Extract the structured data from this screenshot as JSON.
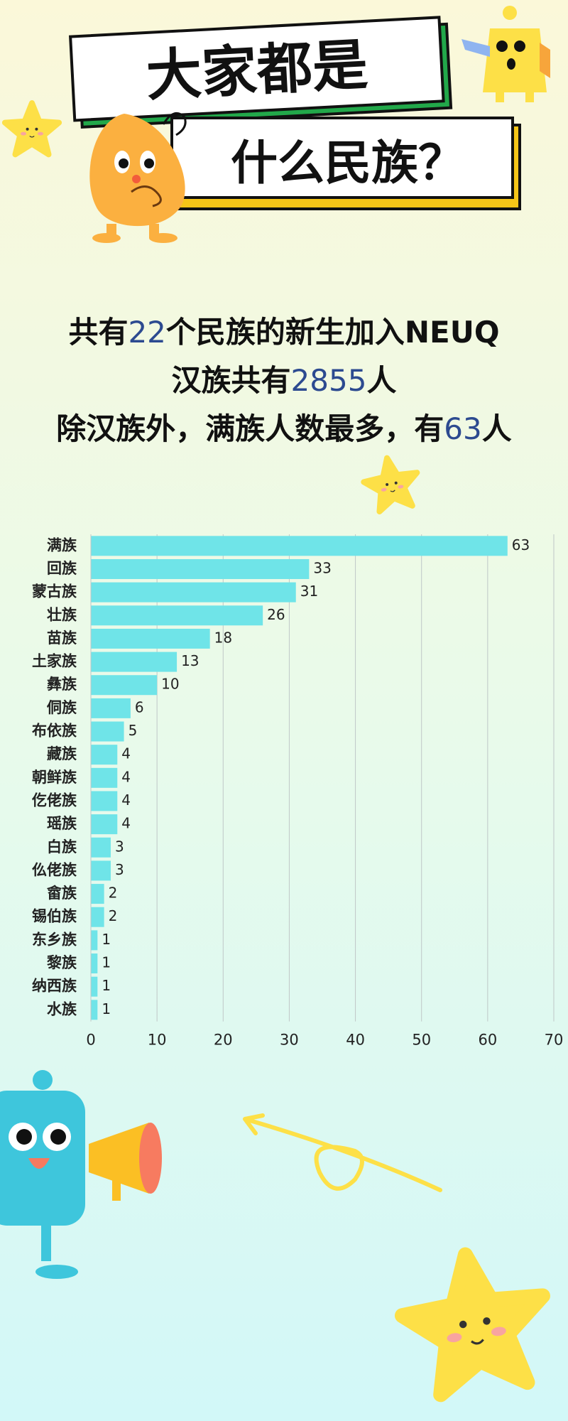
{
  "header": {
    "title_line1": "大家都是",
    "title_line2": "什么民族？"
  },
  "summary": [
    {
      "before": "共有",
      "number": "22",
      "after": "个民族的新生加入NEUQ"
    },
    {
      "before": "汉族共有",
      "number": "2855",
      "after": "人"
    },
    {
      "before": "除汉族外，满族人数最多，有",
      "number": "63",
      "after": "人"
    }
  ],
  "chart_data": {
    "type": "barh",
    "categories": [
      "满族",
      "回族",
      "蒙古族",
      "壮族",
      "苗族",
      "土家族",
      "彝族",
      "侗族",
      "布依族",
      "藏族",
      "朝鲜族",
      "仡佬族",
      "瑶族",
      "白族",
      "仫佬族",
      "畲族",
      "锡伯族",
      "东乡族",
      "黎族",
      "纳西族",
      "水族"
    ],
    "values": [
      63,
      33,
      31,
      26,
      18,
      13,
      10,
      6,
      5,
      4,
      4,
      4,
      4,
      3,
      3,
      2,
      2,
      1,
      1,
      1,
      1
    ],
    "color": "#6fe4e8",
    "xlim": [
      0,
      70
    ],
    "xticks": [
      0,
      10,
      20,
      30,
      40,
      50,
      60,
      70
    ],
    "grid": true
  }
}
